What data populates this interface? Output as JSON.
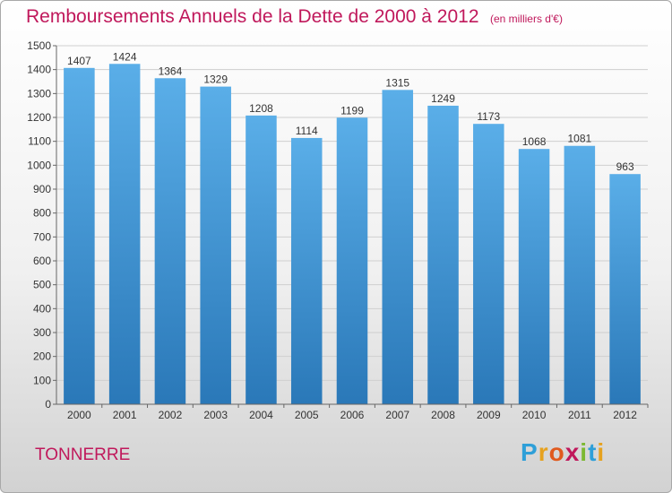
{
  "title": "Remboursements Annuels de la Dette de 2000 à 2012",
  "unit": "(en milliers d'€)",
  "city": "TONNERRE",
  "logo": {
    "letters": [
      "P",
      "r",
      "o",
      "x",
      "i",
      "t",
      "i"
    ],
    "colors": [
      "#2e9fd8",
      "#e6a21f",
      "#e05a1e",
      "#c0185b",
      "#7cb832",
      "#2e9fd8",
      "#e6a21f"
    ]
  },
  "chart_data": {
    "type": "bar",
    "title": "Remboursements Annuels de la Dette de 2000 à 2012",
    "xlabel": "",
    "ylabel": "",
    "categories": [
      "2000",
      "2001",
      "2002",
      "2003",
      "2004",
      "2005",
      "2006",
      "2007",
      "2008",
      "2009",
      "2010",
      "2011",
      "2012"
    ],
    "values": [
      1407,
      1424,
      1364,
      1329,
      1208,
      1114,
      1199,
      1315,
      1249,
      1173,
      1068,
      1081,
      963
    ],
    "ylim": [
      0,
      1500
    ],
    "yticks": [
      0,
      100,
      200,
      300,
      400,
      500,
      600,
      700,
      800,
      900,
      1000,
      1100,
      1200,
      1300,
      1400,
      1500
    ],
    "grid": true,
    "legend": "none",
    "bar_color_top": "#5aaee8",
    "bar_color_bottom": "#2a78b8"
  }
}
